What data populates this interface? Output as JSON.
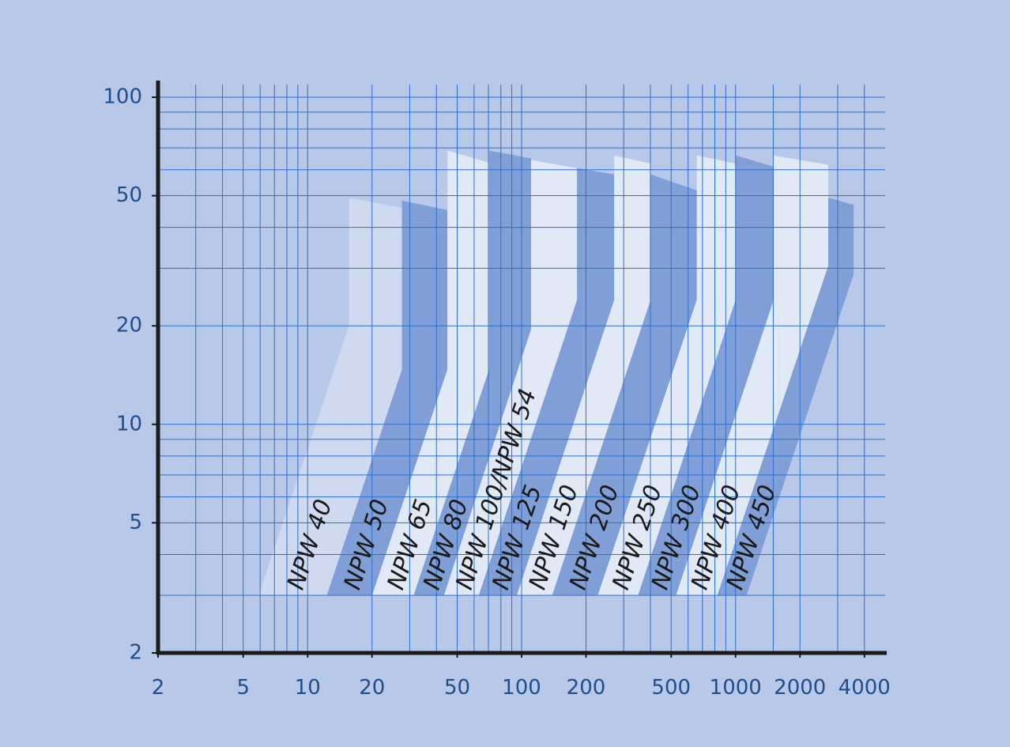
{
  "chart_data": {
    "type": "area-fields",
    "xscale": "log",
    "yscale": "log",
    "xlim": [
      2,
      5000
    ],
    "ylim": [
      2,
      100
    ],
    "xticks": [
      2,
      5,
      10,
      20,
      50,
      100,
      200,
      500,
      1000,
      2000,
      4000
    ],
    "yticks": [
      2,
      5,
      10,
      20,
      50,
      100
    ],
    "xgrid": [
      3,
      4,
      5,
      6,
      7,
      8,
      9,
      10,
      20,
      30,
      40,
      50,
      60,
      70,
      80,
      90,
      100,
      200,
      300,
      400,
      500,
      600,
      700,
      800,
      900,
      1000,
      1500,
      2000,
      3000,
      4000
    ],
    "ygrid": [
      3,
      4,
      5,
      6,
      7,
      8,
      9,
      10,
      20,
      30,
      40,
      50,
      60,
      70,
      80,
      90,
      100
    ],
    "series": [
      {
        "name": "NPW 40",
        "color": "#cfdaf0",
        "x": [
          5.9,
          15.6,
          15.6,
          27.6,
          27.6,
          12.3
        ],
        "y": [
          3,
          20,
          49.3,
          45.9,
          14.7,
          3
        ]
      },
      {
        "name": "NPW 50",
        "color": "#7f9fd6",
        "x": [
          12.3,
          27.6,
          27.6,
          45,
          45,
          20
        ],
        "y": [
          3,
          14.7,
          48.3,
          45.2,
          14.7,
          3
        ]
      },
      {
        "name": "NPW 65",
        "color": "#e1e8f6",
        "x": [
          20,
          45,
          45,
          70.5,
          70.5,
          31.3
        ],
        "y": [
          3,
          14.7,
          68.7,
          63.1,
          14.7,
          3
        ]
      },
      {
        "name": "NPW 80",
        "color": "#7f9fd6",
        "x": [
          31.3,
          70.5,
          70.5,
          110.7,
          110.7,
          43.4
        ],
        "y": [
          3,
          14.7,
          68.7,
          65,
          19.5,
          3
        ]
      },
      {
        "name": "NPW 100/NPW 54",
        "color": "#e1e8f6",
        "x": [
          43.4,
          110.7,
          110.7,
          181.6,
          181.6,
          63.1
        ],
        "y": [
          3,
          19.5,
          64.3,
          60.7,
          24,
          3
        ]
      },
      {
        "name": "NPW 125",
        "color": "#7f9fd6",
        "x": [
          63.1,
          181.6,
          181.6,
          271,
          271,
          95
        ],
        "y": [
          3,
          24,
          60.7,
          58.1,
          24,
          3
        ]
      },
      {
        "name": "NPW 150",
        "color": "#e1e8f6",
        "x": [
          95,
          271,
          271,
          401,
          401,
          139
        ],
        "y": [
          3,
          24,
          66.4,
          62.7,
          24,
          3
        ]
      },
      {
        "name": "NPW 200",
        "color": "#7f9fd6",
        "x": [
          139,
          401,
          401,
          659,
          659,
          227
        ],
        "y": [
          3,
          24,
          58.1,
          51.9,
          24,
          3
        ]
      },
      {
        "name": "NPW 250",
        "color": "#e1e8f6",
        "x": [
          227,
          659,
          659,
          1000,
          1000,
          350
        ],
        "y": [
          3,
          24,
          66.4,
          62.7,
          24,
          3
        ]
      },
      {
        "name": "NPW 300",
        "color": "#7f9fd6",
        "x": [
          350,
          1000,
          1000,
          1506,
          1506,
          527
        ],
        "y": [
          3,
          24,
          66.4,
          61.4,
          24,
          3
        ]
      },
      {
        "name": "NPW 400",
        "color": "#e1e8f6",
        "x": [
          527,
          1506,
          1506,
          2711,
          2711,
          822
        ],
        "y": [
          3,
          24,
          66.4,
          62.1,
          30.5,
          3
        ]
      },
      {
        "name": "NPW 450",
        "color": "#7f9fd6",
        "x": [
          822,
          2711,
          2711,
          3565,
          3565,
          1127
        ],
        "y": [
          3,
          30.5,
          49.3,
          46.9,
          28.8,
          3
        ]
      }
    ]
  }
}
